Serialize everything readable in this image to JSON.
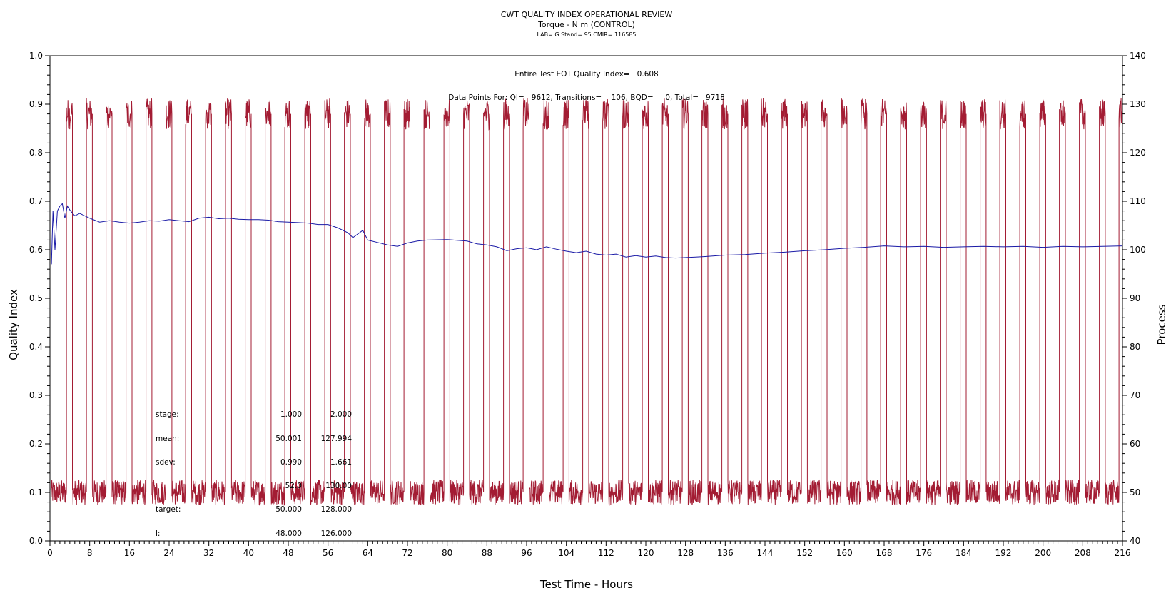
{
  "chart_data": {
    "type": "line",
    "title": "CWT QUALITY INDEX OPERATIONAL REVIEW",
    "subtitle": "Torque - N m (CONTROL)",
    "subsubtitle": "LAB= G Stand= 95 CMIR= 116585",
    "xlabel": "Test Time - Hours",
    "ylabel_left": "Quality Index",
    "ylabel_right": "Process",
    "xlim": [
      0,
      216
    ],
    "ylim_left": [
      0.0,
      1.0
    ],
    "ylim_right": [
      40,
      140
    ],
    "x_ticks": [
      "0",
      "8",
      "16",
      "24",
      "32",
      "40",
      "48",
      "56",
      "64",
      "72",
      "80",
      "88",
      "96",
      "104",
      "112",
      "120",
      "128",
      "136",
      "144",
      "152",
      "160",
      "168",
      "176",
      "184",
      "192",
      "200",
      "208",
      "216"
    ],
    "y_left_ticks": [
      "0.0",
      "0.1",
      "0.2",
      "0.3",
      "0.4",
      "0.5",
      "0.6",
      "0.7",
      "0.8",
      "0.9",
      "1.0"
    ],
    "y_right_ticks": [
      "40",
      "50",
      "60",
      "70",
      "80",
      "90",
      "100",
      "110",
      "120",
      "130",
      "140"
    ],
    "annotations": {
      "qi_line": "Entire Test EOT Quality Index=   0.608",
      "points_line": "Data Points For: QI=   9612, Transitions=    106, BQD=     0, Total=   9718"
    },
    "stats_table": {
      "rows": [
        {
          "label": "stage:",
          "v1": "1.000",
          "v2": "2.000"
        },
        {
          "label": "mean:",
          "v1": "50.001",
          "v2": "127.994"
        },
        {
          "label": "sdev:",
          "v1": "0.990",
          "v2": "1.661"
        },
        {
          "label": "",
          "v1": "52.0",
          "v2": "130.00"
        },
        {
          "label": "target:",
          "v1": "50.000",
          "v2": "128.000"
        },
        {
          "label": "l:",
          "v1": "48.000",
          "v2": "126.000"
        }
      ]
    },
    "series": [
      {
        "color": "#a31c33",
        "axis": "right",
        "low_level": 50,
        "high_level": 128,
        "cycle_starts_hours": [
          3.3,
          7.3,
          11.3,
          15.3,
          19.3,
          23.3,
          27.3,
          31.3,
          35.3,
          39.3,
          43.3,
          47.3,
          51.3,
          55.3,
          59.3,
          63.3,
          67.3,
          71.3,
          75.3,
          79.3,
          83.3,
          87.3,
          91.3,
          95.3,
          99.3,
          103.3,
          107.3,
          111.3,
          115.3,
          119.3,
          123.3,
          127.3,
          131.3,
          135.3,
          139.3,
          143.3,
          147.3,
          151.3,
          155.3,
          159.3,
          163.3,
          167.3,
          171.3,
          175.3,
          179.3,
          183.3,
          187.3,
          191.3,
          195.3,
          199.3,
          203.3,
          207.3,
          211.3,
          215.3
        ],
        "high_duration_hours": 1.2
      },
      {
        "color": "#1a1aa6",
        "axis": "left",
        "x": [
          0.3,
          0.6,
          1.0,
          1.5,
          2.0,
          2.5,
          3.0,
          3.5,
          4.0,
          5.0,
          6.0,
          7.0,
          8.0,
          10,
          12,
          14,
          16,
          18,
          20,
          22,
          24,
          26,
          28,
          30,
          32,
          34,
          36,
          38,
          40,
          42,
          44,
          46,
          48,
          50,
          52,
          54,
          56,
          58,
          60,
          61,
          63,
          64,
          66,
          68,
          70,
          72,
          74,
          76,
          80,
          84,
          86,
          88,
          90,
          92,
          94,
          96,
          98,
          100,
          102,
          104,
          106,
          108,
          110,
          112,
          114,
          116,
          118,
          120,
          122,
          124,
          126,
          128,
          130,
          132,
          136,
          140,
          144,
          148,
          152,
          156,
          160,
          164,
          168,
          172,
          176,
          180,
          184,
          188,
          192,
          196,
          200,
          204,
          208,
          212,
          216
        ],
        "y": [
          0.57,
          0.68,
          0.6,
          0.68,
          0.69,
          0.695,
          0.665,
          0.69,
          0.682,
          0.67,
          0.675,
          0.67,
          0.665,
          0.657,
          0.66,
          0.657,
          0.655,
          0.657,
          0.66,
          0.659,
          0.662,
          0.66,
          0.658,
          0.665,
          0.667,
          0.664,
          0.665,
          0.663,
          0.662,
          0.662,
          0.661,
          0.658,
          0.657,
          0.656,
          0.655,
          0.652,
          0.652,
          0.645,
          0.635,
          0.625,
          0.64,
          0.62,
          0.615,
          0.61,
          0.607,
          0.614,
          0.618,
          0.62,
          0.621,
          0.618,
          0.612,
          0.61,
          0.606,
          0.598,
          0.602,
          0.604,
          0.6,
          0.606,
          0.601,
          0.597,
          0.594,
          0.597,
          0.591,
          0.589,
          0.591,
          0.585,
          0.588,
          0.585,
          0.587,
          0.584,
          0.583,
          0.584,
          0.585,
          0.586,
          0.589,
          0.59,
          0.593,
          0.595,
          0.598,
          0.6,
          0.603,
          0.605,
          0.608,
          0.606,
          0.607,
          0.605,
          0.606,
          0.607,
          0.606,
          0.607,
          0.605,
          0.607,
          0.606,
          0.607,
          0.608
        ]
      }
    ]
  }
}
